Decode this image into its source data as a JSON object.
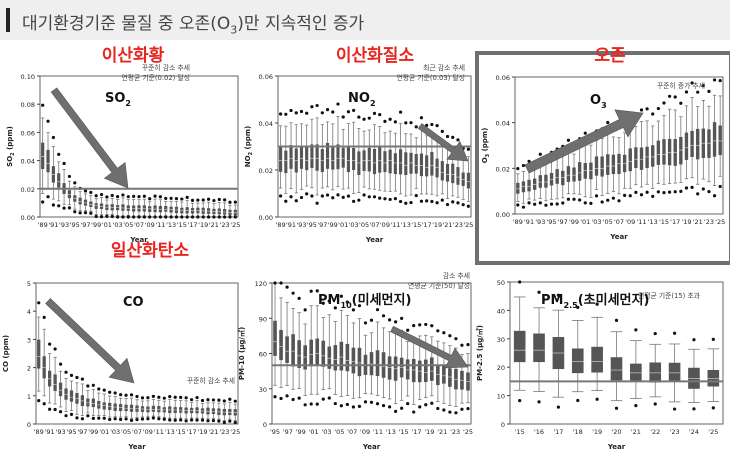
{
  "header": {
    "title_pre": "대기환경기준 물질 중 오존(O",
    "title_sub": "3",
    "title_post": ")만 지속적인 증가"
  },
  "colors": {
    "box": "#555555",
    "whisker": "#777777",
    "ref_line": "#777777",
    "arrow": "#6f6f6f",
    "red": "#e8261f",
    "highlight_border": "#707070"
  },
  "chart_data": [
    {
      "id": "so2",
      "type": "boxplot",
      "korean_title": "이산화황",
      "title": "SO",
      "title_sub": "2",
      "annotation": [
        "꾸준히 감소 추세",
        "연평균 기준(0.02) 달성"
      ],
      "ylabel": "SO",
      "ylabel_sub": "2",
      "ylabel_post": " (ppm)",
      "xlabel": "Year",
      "ylim": [
        0,
        0.1
      ],
      "yticks": [
        0,
        0.02,
        0.04,
        0.06,
        0.08,
        0.1
      ],
      "ytick_labels": [
        "0.00",
        "0.02",
        "0.04",
        "0.06",
        "0.08",
        "0.10"
      ],
      "xticks": [
        "'89",
        "'91",
        "'93",
        "'95",
        "'97",
        "'99",
        "'01",
        "'03",
        "'05",
        "'07",
        "'09",
        "'11",
        "'13",
        "'15",
        "'17",
        "'19",
        "'21",
        "'23",
        "'25"
      ],
      "reference_line": 0.02,
      "arrow": "down",
      "medians": [
        0.043,
        0.038,
        0.03,
        0.025,
        0.02,
        0.016,
        0.013,
        0.011,
        0.01,
        0.009,
        0.008,
        0.0075,
        0.007,
        0.0068,
        0.0066,
        0.0064,
        0.0062,
        0.006,
        0.006,
        0.0058,
        0.0058,
        0.0056,
        0.0055,
        0.0054,
        0.0052,
        0.005,
        0.0048,
        0.0046,
        0.0045,
        0.0044,
        0.0043,
        0.0042,
        0.004,
        0.0038,
        0.0035,
        0.0032,
        0.003
      ]
    },
    {
      "id": "no2",
      "type": "boxplot",
      "korean_title": "이산화질소",
      "title": "NO",
      "title_sub": "2",
      "annotation": [
        "최근 감소 추세",
        "연평균 기준(0.03) 달성"
      ],
      "ylabel": "NO",
      "ylabel_sub": "2",
      "ylabel_post": " (ppm)",
      "xlabel": "Year",
      "ylim": [
        0,
        0.06
      ],
      "yticks": [
        0,
        0.02,
        0.04,
        0.06
      ],
      "ytick_labels": [
        "0.00",
        "0.02",
        "0.04",
        "0.06"
      ],
      "xticks": [
        "'89",
        "'91",
        "'93",
        "'95",
        "'97",
        "'99",
        "'01",
        "'03",
        "'05",
        "'07",
        "'09",
        "'11",
        "'13",
        "'15",
        "'17",
        "'19",
        "'21",
        "'23",
        "'25"
      ],
      "reference_line": 0.03,
      "arrow": "down-right",
      "medians": [
        0.024,
        0.024,
        0.025,
        0.024,
        0.025,
        0.024,
        0.025,
        0.025,
        0.024,
        0.025,
        0.024,
        0.025,
        0.025,
        0.024,
        0.024,
        0.023,
        0.024,
        0.024,
        0.023,
        0.024,
        0.023,
        0.024,
        0.023,
        0.023,
        0.022,
        0.023,
        0.022,
        0.022,
        0.021,
        0.022,
        0.021,
        0.019,
        0.018,
        0.018,
        0.017,
        0.016,
        0.015
      ]
    },
    {
      "id": "o3",
      "type": "boxplot",
      "korean_title": "오존",
      "title": "O",
      "title_sub": "3",
      "annotation": [
        "꾸준히 증가 추세"
      ],
      "ylabel": "O",
      "ylabel_sub": "3",
      "ylabel_post": " (ppm)",
      "xlabel": "Year",
      "ylim": [
        0,
        0.06
      ],
      "yticks": [
        0,
        0.02,
        0.04,
        0.06
      ],
      "ytick_labels": [
        "0.00",
        "0.02",
        "0.04",
        "0.06"
      ],
      "xticks": [
        "'89",
        "'91",
        "'93",
        "'95",
        "'97",
        "'99",
        "'01",
        "'03",
        "'05",
        "'07",
        "'09",
        "'11",
        "'13",
        "'15",
        "'17",
        "'19",
        "'21",
        "'23",
        "'25"
      ],
      "reference_line": null,
      "arrow": "up-right",
      "highlighted": true,
      "medians": [
        0.011,
        0.012,
        0.012,
        0.013,
        0.014,
        0.014,
        0.015,
        0.016,
        0.016,
        0.017,
        0.017,
        0.018,
        0.019,
        0.019,
        0.02,
        0.02,
        0.021,
        0.021,
        0.022,
        0.022,
        0.023,
        0.024,
        0.024,
        0.025,
        0.025,
        0.026,
        0.026,
        0.027,
        0.027,
        0.028,
        0.029,
        0.03,
        0.03,
        0.031,
        0.031,
        0.032,
        0.032
      ]
    },
    {
      "id": "co",
      "type": "boxplot",
      "korean_title": "일산화탄소",
      "title": "CO",
      "title_sub": "",
      "annotation": [
        "꾸준히 감소 추세"
      ],
      "ylabel": "CO",
      "ylabel_sub": "",
      "ylabel_post": " (ppm)",
      "xlabel": "Year",
      "ylim": [
        0,
        5
      ],
      "yticks": [
        0,
        1,
        2,
        3,
        4,
        5
      ],
      "ytick_labels": [
        "0",
        "1",
        "2",
        "3",
        "4",
        "5"
      ],
      "xticks": [
        "'89",
        "'91",
        "'93",
        "'95",
        "'97",
        "'99",
        "'01",
        "'03",
        "'05",
        "'07",
        "'09",
        "'11",
        "'13",
        "'15",
        "'17",
        "'19",
        "'21",
        "'23",
        "'25"
      ],
      "reference_line": null,
      "arrow": "down",
      "medians": [
        2.4,
        2.0,
        1.6,
        1.4,
        1.2,
        1.05,
        0.95,
        0.9,
        0.82,
        0.75,
        0.72,
        0.68,
        0.65,
        0.62,
        0.6,
        0.58,
        0.56,
        0.55,
        0.54,
        0.53,
        0.52,
        0.52,
        0.51,
        0.5,
        0.5,
        0.5,
        0.49,
        0.48,
        0.48,
        0.47,
        0.46,
        0.45,
        0.44,
        0.43,
        0.42,
        0.41,
        0.4
      ]
    },
    {
      "id": "pm10",
      "type": "boxplot",
      "korean_title": "",
      "title": "PM",
      "title_sub": "10",
      "title_post": "(미세먼지)",
      "annotation": [
        "감소 추세",
        "연평균 기준(50) 달성"
      ],
      "ylabel": "PM-10 (",
      "ylabel_sub": "",
      "ylabel_post": "μg/㎥)",
      "xlabel": "Year",
      "ylim": [
        0,
        120
      ],
      "yticks": [
        0,
        30,
        60,
        90,
        120
      ],
      "ytick_labels": [
        "0",
        "30",
        "60",
        "90",
        "120"
      ],
      "xticks": [
        "'95",
        "'97",
        "'99",
        "'01",
        "'03",
        "'05",
        "'07",
        "'09",
        "'11",
        "'13",
        "'15",
        "'17",
        "'19",
        "'21",
        "'23",
        "'25"
      ],
      "reference_line": 50,
      "arrow": "down-right",
      "medians": [
        70,
        66,
        62,
        62,
        58,
        57,
        59,
        60,
        58,
        56,
        55,
        57,
        54,
        53,
        52,
        50,
        51,
        50,
        49,
        48,
        47,
        48,
        46,
        46,
        45,
        44,
        45,
        42,
        41,
        40,
        38,
        37,
        36
      ]
    },
    {
      "id": "pm25",
      "type": "boxplot",
      "korean_title": "",
      "title": "PM",
      "title_sub": "2.5",
      "title_post": "(초미세먼지)",
      "annotation": [
        "연평균 기준(15) 초과"
      ],
      "ylabel": "PM-2.5 (",
      "ylabel_sub": "",
      "ylabel_post": "μg/㎥)",
      "xlabel": "Year",
      "ylim": [
        0,
        50
      ],
      "yticks": [
        0,
        10,
        20,
        30,
        40,
        50
      ],
      "ytick_labels": [
        "0",
        "10",
        "20",
        "30",
        "40",
        "50"
      ],
      "xticks": [
        "'15",
        "'16",
        "'17",
        "'18",
        "'19",
        "'20",
        "'21",
        "'22",
        "'23",
        "'24",
        "'25"
      ],
      "reference_line": 15,
      "arrow": null,
      "medians": [
        26,
        26,
        25,
        22,
        22,
        19,
        18,
        18,
        18,
        16,
        16
      ]
    }
  ]
}
